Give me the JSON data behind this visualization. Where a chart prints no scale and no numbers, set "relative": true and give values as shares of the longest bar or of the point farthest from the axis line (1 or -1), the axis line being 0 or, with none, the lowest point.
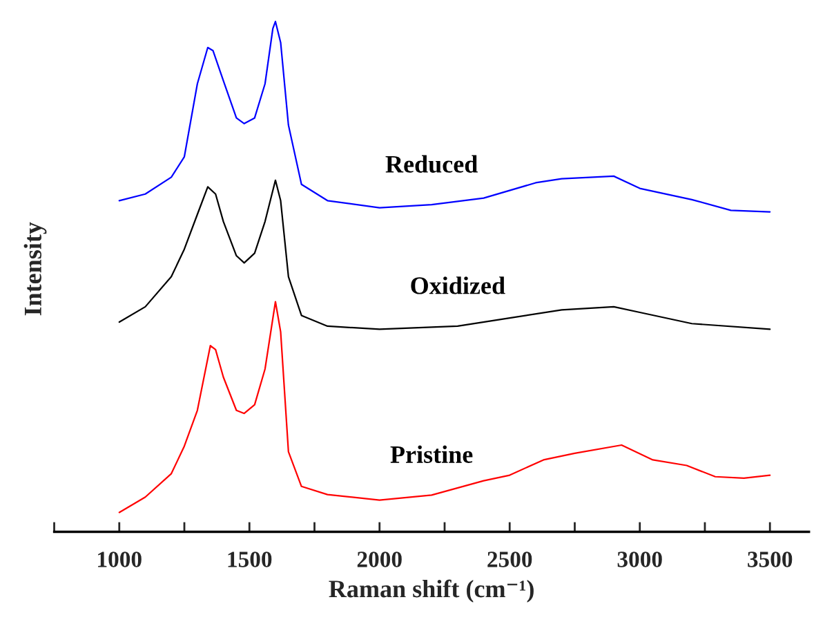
{
  "chart_data": {
    "type": "line",
    "relative": true,
    "xlabel": "Raman shift (cm⁻¹)",
    "ylabel": "Intensity",
    "xlim": [
      750,
      3650
    ],
    "xticks": [
      {
        "value": 750,
        "label": null
      },
      1000,
      {
        "value": 1250,
        "label": null
      },
      1500,
      {
        "value": 1750,
        "label": null
      },
      2000,
      {
        "value": 2250,
        "label": null
      },
      2500,
      {
        "value": 2750,
        "label": null
      },
      3000,
      {
        "value": 3250,
        "label": null
      },
      3500
    ],
    "tick_labels": "x",
    "grid": false,
    "legend": false,
    "marker": "none",
    "line_style": "solid",
    "series": [
      {
        "name": "Reduced",
        "color": "#0000ff",
        "x": [
          1000,
          1100,
          1200,
          1250,
          1300,
          1340,
          1360,
          1400,
          1450,
          1480,
          1520,
          1560,
          1590,
          1600,
          1620,
          1650,
          1700,
          1800,
          2000,
          2200,
          2400,
          2600,
          2700,
          2900,
          3000,
          3200,
          3350,
          3500
        ],
        "values": [
          0.649,
          0.662,
          0.695,
          0.735,
          0.878,
          0.949,
          0.943,
          0.884,
          0.811,
          0.8,
          0.811,
          0.878,
          0.986,
          1.0,
          0.959,
          0.797,
          0.681,
          0.649,
          0.635,
          0.641,
          0.654,
          0.684,
          0.692,
          0.697,
          0.673,
          0.651,
          0.63,
          0.627
        ]
      },
      {
        "name": "Oxidized",
        "color": "#000000",
        "x": [
          1000,
          1100,
          1200,
          1250,
          1300,
          1340,
          1370,
          1400,
          1450,
          1480,
          1520,
          1560,
          1600,
          1620,
          1650,
          1700,
          1800,
          2000,
          2300,
          2500,
          2700,
          2900,
          3000,
          3200,
          3500
        ],
        "values": [
          0.411,
          0.441,
          0.5,
          0.554,
          0.622,
          0.676,
          0.662,
          0.608,
          0.541,
          0.527,
          0.546,
          0.608,
          0.689,
          0.649,
          0.5,
          0.424,
          0.403,
          0.397,
          0.403,
          0.419,
          0.435,
          0.441,
          0.43,
          0.408,
          0.397
        ]
      },
      {
        "name": "Pristine",
        "color": "#ff0000",
        "x": [
          1000,
          1100,
          1200,
          1250,
          1300,
          1350,
          1370,
          1400,
          1450,
          1480,
          1520,
          1560,
          1600,
          1620,
          1650,
          1700,
          1800,
          2000,
          2200,
          2400,
          2500,
          2630,
          2750,
          2930,
          3050,
          3180,
          3290,
          3400,
          3500
        ],
        "values": [
          0.038,
          0.068,
          0.114,
          0.168,
          0.238,
          0.365,
          0.357,
          0.303,
          0.238,
          0.232,
          0.249,
          0.319,
          0.451,
          0.392,
          0.157,
          0.089,
          0.073,
          0.062,
          0.072,
          0.1,
          0.111,
          0.141,
          0.154,
          0.17,
          0.141,
          0.13,
          0.108,
          0.105,
          0.111
        ]
      }
    ]
  }
}
